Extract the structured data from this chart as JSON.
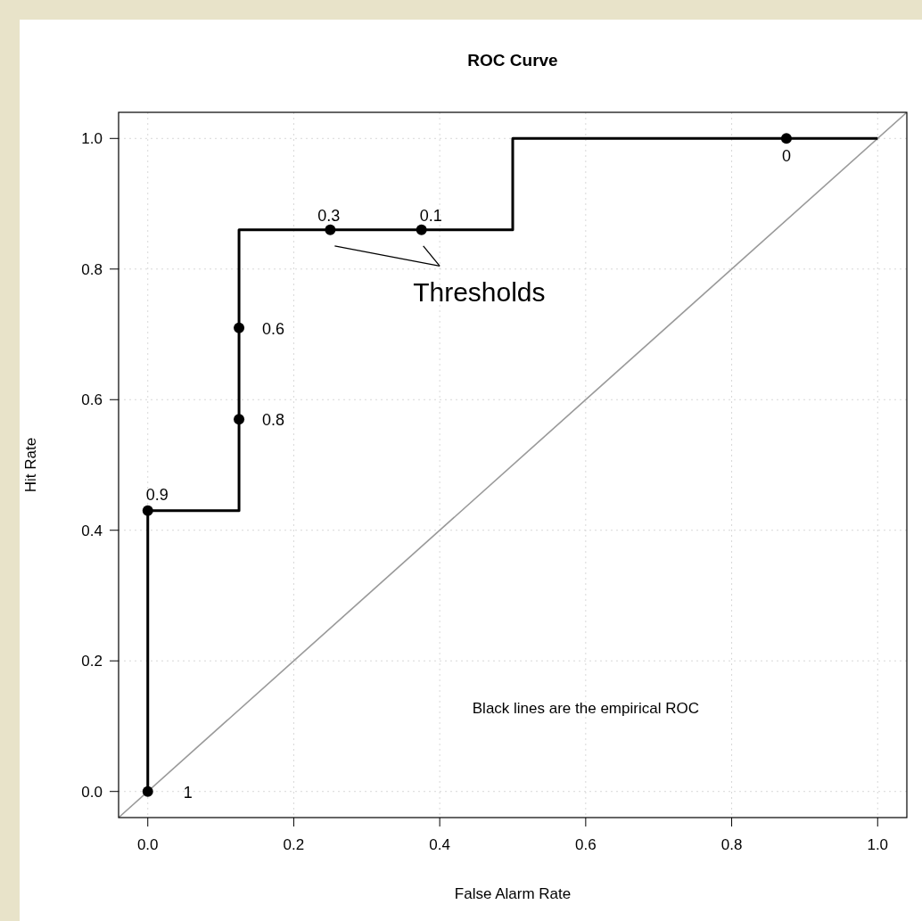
{
  "chart_data": {
    "type": "line",
    "title": "ROC Curve",
    "xlabel": "False Alarm Rate",
    "ylabel": "Hit Rate",
    "xlim": [
      -0.04,
      1.04
    ],
    "ylim": [
      -0.04,
      1.04
    ],
    "xticks": [
      {
        "value": 0,
        "label": "0.0"
      },
      0.2,
      0.4,
      0.6,
      0.8,
      {
        "value": 1,
        "label": "1.0"
      }
    ],
    "yticks": [
      {
        "value": 0,
        "label": "0.0"
      },
      0.2,
      0.4,
      0.6,
      0.8,
      {
        "value": 1,
        "label": "1.0"
      }
    ],
    "grid": true,
    "series": [
      {
        "color": "#9a9a9a",
        "x": [
          -0.04,
          1.04
        ],
        "values": [
          -0.04,
          1.04
        ],
        "marker": "none"
      },
      {
        "color": "#000000",
        "x": [
          0,
          0,
          0.125,
          0.125,
          0.5,
          0.5,
          1
        ],
        "values": [
          0,
          0.43,
          0.43,
          0.86,
          0.86,
          1,
          1
        ],
        "marker": "none"
      },
      {
        "type": "scatter",
        "color": "#000000",
        "x": [
          0,
          0,
          0.125,
          0.125,
          0.25,
          0.375,
          0.875
        ],
        "values": [
          0,
          0.43,
          0.57,
          0.71,
          0.86,
          0.86,
          1
        ],
        "marker": "circle"
      }
    ],
    "annotations": [
      {
        "text": "1",
        "x": 0,
        "y": 0
      },
      {
        "text": "0.9",
        "x": 0,
        "y": 0.43
      },
      {
        "text": "0.8",
        "x": 0.125,
        "y": 0.57
      },
      {
        "text": "0.6",
        "x": 0.125,
        "y": 0.71
      },
      {
        "text": "0.3",
        "x": 0.25,
        "y": 0.86
      },
      {
        "text": "0.1",
        "x": 0.375,
        "y": 0.86
      },
      {
        "text": "0",
        "x": 0.875,
        "y": 1
      },
      "Thresholds",
      "Black lines are the empirical ROC"
    ]
  }
}
